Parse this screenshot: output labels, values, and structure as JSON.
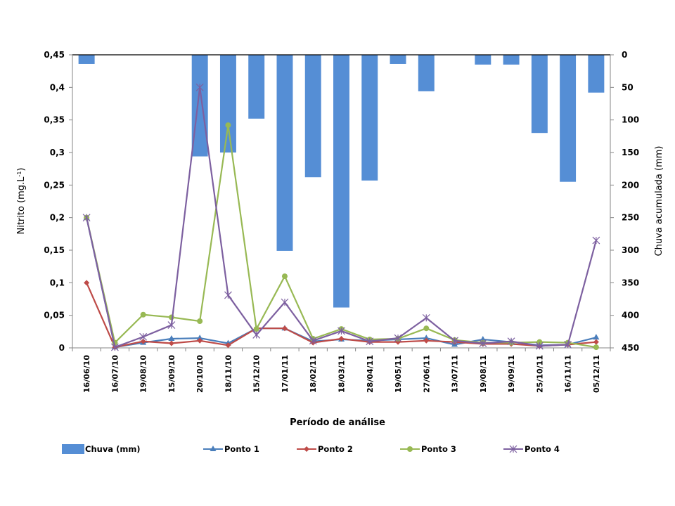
{
  "chart_data": {
    "type": "bar+line",
    "categories": [
      "16/06/10",
      "16/07/10",
      "19/08/10",
      "15/09/10",
      "20/10/10",
      "18/11/10",
      "15/12/10",
      "17/01/11",
      "18/02/11",
      "18/03/11",
      "28/04/11",
      "19/05/11",
      "27/06/11",
      "13/07/11",
      "19/08/11",
      "19/09/11",
      "25/10/11",
      "16/11/11",
      "05/12/11"
    ],
    "xlabel": "Período de análise",
    "ylabel_left": "Nitrito (mg.L",
    "ylabel_left_sup": "-1",
    "ylabel_left_close": ")",
    "ylabel_right": "Chuva acumulada (mm)",
    "ylim_left": [
      0,
      0.45
    ],
    "ylim_right": [
      0,
      450
    ],
    "right_axis_inverted": true,
    "yticks_left": [
      "0",
      "0,05",
      "0,1",
      "0,15",
      "0,2",
      "0,25",
      "0,3",
      "0,35",
      "0,4",
      "0,45"
    ],
    "yticks_right": [
      "0",
      "50",
      "100",
      "150",
      "200",
      "250",
      "300",
      "350",
      "400",
      "450"
    ],
    "legend_position": "bottom",
    "bars": {
      "name": "Chuva (mm)",
      "color": "#558ED5",
      "values": [
        14,
        0,
        0,
        0,
        156,
        150,
        98,
        301,
        188,
        388,
        193,
        14,
        56,
        0,
        15,
        15,
        120,
        195,
        58
      ]
    },
    "series": [
      {
        "name": "Ponto 1",
        "color": "#4A7EBB",
        "marker": "triangle",
        "values": [
          0.2,
          0.001,
          0.008,
          0.014,
          0.015,
          0.007,
          0.03,
          0.03,
          0.01,
          0.013,
          0.011,
          0.013,
          0.015,
          0.005,
          0.013,
          0.009,
          0.004,
          0.005,
          0.016
        ]
      },
      {
        "name": "Ponto 2",
        "color": "#BE4B48",
        "marker": "diamond",
        "values": [
          0.1,
          0.001,
          0.01,
          0.007,
          0.011,
          0.004,
          0.03,
          0.03,
          0.008,
          0.014,
          0.009,
          0.009,
          0.011,
          0.009,
          0.006,
          0.006,
          0.003,
          0.005,
          0.009
        ]
      },
      {
        "name": "Ponto 3",
        "color": "#98B954",
        "marker": "circle",
        "values": [
          0.2,
          0.008,
          0.051,
          0.047,
          0.041,
          0.342,
          0.029,
          0.11,
          0.014,
          0.029,
          0.013,
          0.014,
          0.03,
          0.012,
          0.008,
          0.008,
          0.009,
          0.008,
          0.001
        ]
      },
      {
        "name": "Ponto 4",
        "color": "#7D60A0",
        "marker": "star",
        "values": [
          0.2,
          0.001,
          0.017,
          0.035,
          0.4,
          0.081,
          0.02,
          0.07,
          0.011,
          0.026,
          0.01,
          0.015,
          0.046,
          0.011,
          0.007,
          0.01,
          0.003,
          0.005,
          0.165
        ]
      }
    ]
  }
}
